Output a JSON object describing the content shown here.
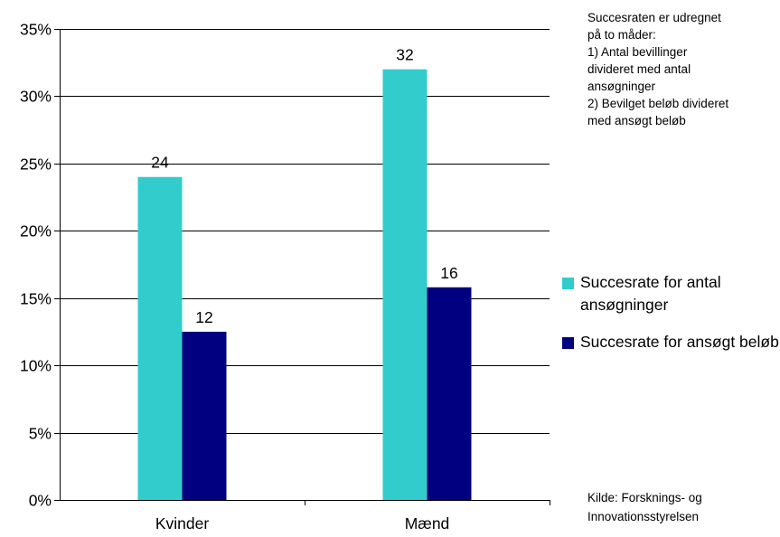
{
  "chart_data": {
    "type": "bar",
    "categories": [
      "Kvinder",
      "Mænd"
    ],
    "series": [
      {
        "name": "Succesrate for antal ansøgninger",
        "values": [
          24,
          32
        ],
        "labels": [
          "24",
          "32"
        ],
        "color": "#33CCCC"
      },
      {
        "name": "Succesrate for ansøgt beløb",
        "values": [
          12.5,
          15.8
        ],
        "labels": [
          "12",
          "16"
        ],
        "color": "#000080"
      }
    ],
    "title": "",
    "xlabel": "",
    "ylabel": "",
    "ylim": [
      0,
      35
    ],
    "yticks": [
      0,
      5,
      10,
      15,
      20,
      25,
      30,
      35
    ],
    "ytick_labels": [
      "0%",
      "5%",
      "10%",
      "15%",
      "20%",
      "25%",
      "30%",
      "35%"
    ],
    "grid": true,
    "legend_position": "right"
  },
  "note": "Succesraten er udregnet\npå to måder:\n1) Antal bevillinger\ndivideret med antal\nansøgninger\n2) Bevilget beløb divideret\nmed ansøgt beløb",
  "source": "Kilde: Forsknings- og\nInnovationsstyrelsen"
}
